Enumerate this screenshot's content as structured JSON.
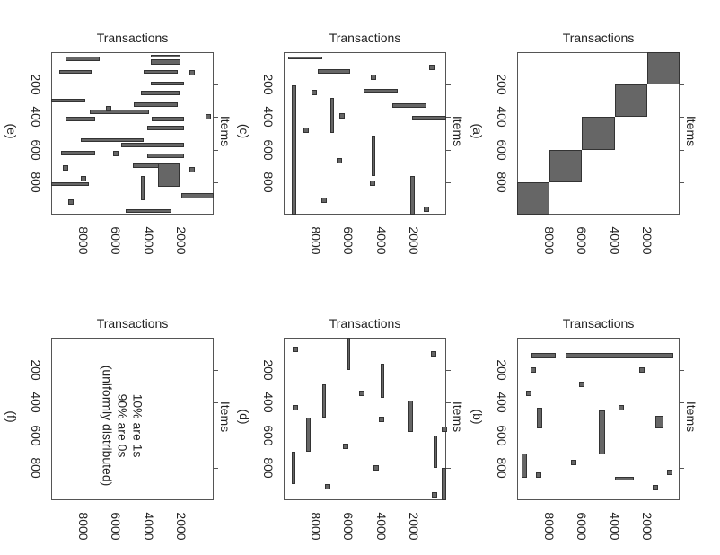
{
  "figure": {
    "title": "Transactions",
    "side_label": "Items",
    "y_ticks": [
      "200",
      "400",
      "600",
      "800"
    ],
    "x_ticks": [
      "8000",
      "6000",
      "4000",
      "2000"
    ]
  },
  "chart_data": [
    {
      "id": "e",
      "tag": "(e)",
      "type": "heatmap",
      "title": "Transactions",
      "label": "Items",
      "rows_label": "Items",
      "cols_label": "Transactions",
      "items_range": [
        0,
        1000
      ],
      "transactions_range": [
        10000,
        0
      ],
      "blocks": [
        {
          "item": [
            30,
            55
          ],
          "txn": [
            9100,
            7000
          ]
        },
        {
          "item": [
            15,
            30
          ],
          "txn": [
            3850,
            2050
          ]
        },
        {
          "item": [
            45,
            75
          ],
          "txn": [
            3850,
            2050
          ]
        },
        {
          "item": [
            110,
            135
          ],
          "txn": [
            9500,
            7500
          ]
        },
        {
          "item": [
            110,
            135
          ],
          "txn": [
            4300,
            2200
          ]
        },
        {
          "item": [
            180,
            205
          ],
          "txn": [
            3850,
            1850
          ]
        },
        {
          "item": [
            240,
            265
          ],
          "txn": [
            4500,
            2100
          ]
        },
        {
          "item": [
            285,
            310
          ],
          "txn": [
            10000,
            7900
          ]
        },
        {
          "item": [
            310,
            335
          ],
          "txn": [
            4900,
            2200
          ]
        },
        {
          "item": [
            355,
            380
          ],
          "txn": [
            7600,
            4000
          ]
        },
        {
          "item": [
            400,
            425
          ],
          "txn": [
            9100,
            7300
          ]
        },
        {
          "item": [
            400,
            425
          ],
          "txn": [
            3800,
            1800
          ]
        },
        {
          "item": [
            455,
            480
          ],
          "txn": [
            4100,
            1800
          ]
        },
        {
          "item": [
            530,
            555
          ],
          "txn": [
            8200,
            4300
          ]
        },
        {
          "item": [
            560,
            585
          ],
          "txn": [
            5700,
            1800
          ]
        },
        {
          "item": [
            610,
            635
          ],
          "txn": [
            9400,
            7300
          ]
        },
        {
          "item": [
            625,
            650
          ],
          "txn": [
            4100,
            1800
          ]
        },
        {
          "item": [
            685,
            710
          ],
          "txn": [
            5000,
            3200
          ]
        },
        {
          "item": [
            685,
            830
          ],
          "txn": [
            3400,
            2100
          ]
        },
        {
          "item": [
            800,
            825
          ],
          "txn": [
            10000,
            7700
          ]
        },
        {
          "item": [
            765,
            910
          ],
          "txn": [
            4500,
            4250
          ]
        },
        {
          "item": [
            870,
            900
          ],
          "txn": [
            2000,
            0
          ]
        },
        {
          "item": [
            965,
            990
          ],
          "txn": [
            5400,
            2600
          ]
        }
      ],
      "dots": [
        {
          "item": 125,
          "txn": 1300
        },
        {
          "item": 350,
          "txn": 6450
        },
        {
          "item": 400,
          "txn": 350
        },
        {
          "item": 625,
          "txn": 6000
        },
        {
          "item": 710,
          "txn": 9100
        },
        {
          "item": 725,
          "txn": 1300
        },
        {
          "item": 780,
          "txn": 8000
        },
        {
          "item": 920,
          "txn": 8800
        }
      ]
    },
    {
      "id": "c",
      "tag": "(c)",
      "type": "heatmap",
      "title": "Transactions",
      "label": "Items",
      "rows_label": "Items",
      "cols_label": "Transactions",
      "items_range": [
        0,
        1000
      ],
      "transactions_range": [
        10000,
        0
      ],
      "blocks": [
        {
          "item": [
            25,
            45
          ],
          "txn": [
            9700,
            7600
          ]
        },
        {
          "item": [
            105,
            130
          ],
          "txn": [
            7900,
            5900
          ]
        },
        {
          "item": [
            225,
            250
          ],
          "txn": [
            5100,
            3000
          ]
        },
        {
          "item": [
            315,
            340
          ],
          "txn": [
            3300,
            1200
          ]
        },
        {
          "item": [
            395,
            420
          ],
          "txn": [
            2100,
            0
          ]
        },
        {
          "item": [
            205,
            1000
          ],
          "txn": [
            9500,
            9200
          ]
        },
        {
          "item": [
            280,
            500
          ],
          "txn": [
            7150,
            6900
          ]
        },
        {
          "item": [
            515,
            760
          ],
          "txn": [
            4600,
            4350
          ]
        },
        {
          "item": [
            760,
            1000
          ],
          "txn": [
            2200,
            1950
          ]
        }
      ],
      "dots": [
        {
          "item": 95,
          "txn": 900
        },
        {
          "item": 155,
          "txn": 4500
        },
        {
          "item": 250,
          "txn": 8100
        },
        {
          "item": 390,
          "txn": 6400
        },
        {
          "item": 480,
          "txn": 8600
        },
        {
          "item": 670,
          "txn": 6600
        },
        {
          "item": 805,
          "txn": 4550
        },
        {
          "item": 910,
          "txn": 7500
        },
        {
          "item": 965,
          "txn": 1200
        }
      ]
    },
    {
      "id": "a",
      "tag": "(a)",
      "type": "heatmap",
      "title": "Transactions",
      "label": "Items",
      "rows_label": "Items",
      "cols_label": "Transactions",
      "items_range": [
        0,
        1000
      ],
      "transactions_range": [
        10000,
        0
      ],
      "blocks": [
        {
          "item": [
            0,
            200
          ],
          "txn": [
            2000,
            0
          ]
        },
        {
          "item": [
            200,
            400
          ],
          "txn": [
            4000,
            2000
          ]
        },
        {
          "item": [
            400,
            600
          ],
          "txn": [
            6000,
            4000
          ]
        },
        {
          "item": [
            600,
            800
          ],
          "txn": [
            8000,
            6000
          ]
        },
        {
          "item": [
            800,
            1000
          ],
          "txn": [
            10000,
            8000
          ]
        }
      ],
      "dots": []
    },
    {
      "id": "f",
      "tag": "(f)",
      "type": "heatmap",
      "title": "Transactions",
      "label": "Items",
      "rows_label": "Items",
      "cols_label": "Transactions",
      "items_range": [
        0,
        1000
      ],
      "transactions_range": [
        10000,
        0
      ],
      "blocks": [],
      "dots": [],
      "note": [
        "10% are 1s",
        "90% are 0s",
        "(uniformly distributed)"
      ]
    },
    {
      "id": "d",
      "tag": "(d)",
      "type": "heatmap",
      "title": "Transactions",
      "label": "Items",
      "rows_label": "Items",
      "cols_label": "Transactions",
      "items_range": [
        0,
        1000
      ],
      "transactions_range": [
        10000,
        0
      ],
      "blocks": [
        {
          "item": [
            0,
            200
          ],
          "txn": [
            6100,
            5900
          ]
        },
        {
          "item": [
            160,
            370
          ],
          "txn": [
            4050,
            3800
          ]
        },
        {
          "item": [
            290,
            490
          ],
          "txn": [
            7650,
            7400
          ]
        },
        {
          "item": [
            385,
            580
          ],
          "txn": [
            2300,
            2050
          ]
        },
        {
          "item": [
            490,
            700
          ],
          "txn": [
            8600,
            8350
          ]
        },
        {
          "item": [
            600,
            800
          ],
          "txn": [
            800,
            550
          ]
        },
        {
          "item": [
            700,
            900
          ],
          "txn": [
            9500,
            9300
          ]
        },
        {
          "item": [
            800,
            1000
          ],
          "txn": [
            300,
            0
          ]
        }
      ],
      "dots": [
        {
          "item": 70,
          "txn": 9300
        },
        {
          "item": 100,
          "txn": 800
        },
        {
          "item": 345,
          "txn": 5200
        },
        {
          "item": 430,
          "txn": 9300
        },
        {
          "item": 505,
          "txn": 4000
        },
        {
          "item": 565,
          "txn": 100
        },
        {
          "item": 670,
          "txn": 6200
        },
        {
          "item": 800,
          "txn": 4300
        },
        {
          "item": 915,
          "txn": 7300
        },
        {
          "item": 965,
          "txn": 700
        }
      ]
    },
    {
      "id": "b",
      "tag": "(b)",
      "type": "heatmap",
      "title": "Transactions",
      "label": "Items",
      "rows_label": "Items",
      "cols_label": "Transactions",
      "items_range": [
        0,
        1000
      ],
      "transactions_range": [
        10000,
        0
      ],
      "blocks": [
        {
          "item": [
            95,
            125
          ],
          "txn": [
            9100,
            7600
          ]
        },
        {
          "item": [
            95,
            125
          ],
          "txn": [
            7000,
            400
          ]
        },
        {
          "item": [
            430,
            560
          ],
          "txn": [
            8800,
            8450
          ]
        },
        {
          "item": [
            450,
            720
          ],
          "txn": [
            5000,
            4600
          ]
        },
        {
          "item": [
            480,
            560
          ],
          "txn": [
            1500,
            1000
          ]
        },
        {
          "item": [
            710,
            860
          ],
          "txn": [
            9700,
            9400
          ]
        },
        {
          "item": [
            855,
            880
          ],
          "txn": [
            4000,
            2800
          ]
        }
      ],
      "dots": [
        {
          "item": 200,
          "txn": 9000
        },
        {
          "item": 200,
          "txn": 2300
        },
        {
          "item": 290,
          "txn": 6000
        },
        {
          "item": 345,
          "txn": 9300
        },
        {
          "item": 430,
          "txn": 3600
        },
        {
          "item": 770,
          "txn": 6500
        },
        {
          "item": 830,
          "txn": 600
        },
        {
          "item": 845,
          "txn": 8700
        },
        {
          "item": 920,
          "txn": 1500
        }
      ]
    }
  ]
}
